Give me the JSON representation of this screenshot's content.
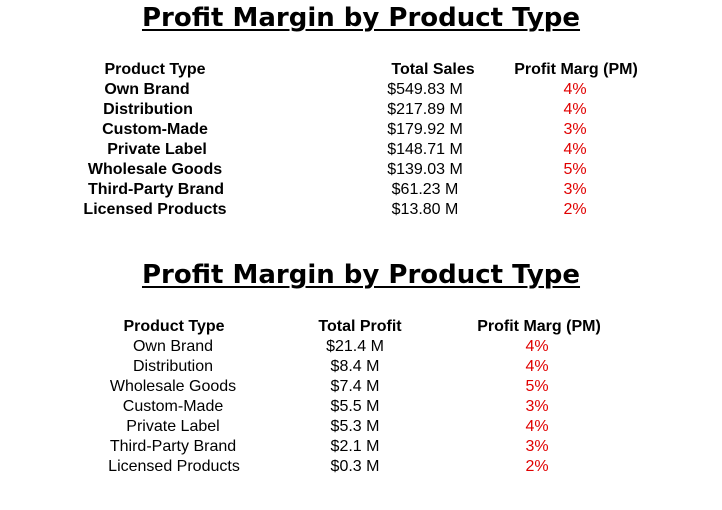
{
  "tables": [
    {
      "title": "Profit Margin by Product Type",
      "headers": [
        "Product Type",
        "Total Sales",
        "Profit Marg (PM)"
      ],
      "rows": [
        {
          "product": "Own Brand",
          "value": "$549.83 M",
          "pm": "4%"
        },
        {
          "product": "Distribution",
          "value": "$217.89 M",
          "pm": "4%"
        },
        {
          "product": "Custom-Made",
          "value": "$179.92 M",
          "pm": "3%"
        },
        {
          "product": "Private Label",
          "value": "$148.71 M",
          "pm": "4%"
        },
        {
          "product": "Wholesale Goods",
          "value": "$139.03 M",
          "pm": "5%"
        },
        {
          "product": "Third-Party Brand",
          "value": "$61.23 M",
          "pm": "3%"
        },
        {
          "product": "Licensed Products",
          "value": "$13.80 M",
          "pm": "2%"
        }
      ]
    },
    {
      "title": "Profit Margin by Product Type",
      "headers": [
        "Product Type",
        "Total Profit",
        "Profit Marg (PM)"
      ],
      "rows": [
        {
          "product": "Own Brand",
          "value": "$21.4 M",
          "pm": "4%"
        },
        {
          "product": "Distribution",
          "value": "$8.4 M",
          "pm": "4%"
        },
        {
          "product": "Wholesale Goods",
          "value": "$7.4 M",
          "pm": "5%"
        },
        {
          "product": "Custom-Made",
          "value": "$5.5 M",
          "pm": "3%"
        },
        {
          "product": "Private Label",
          "value": "$5.3 M",
          "pm": "4%"
        },
        {
          "product": "Third-Party Brand",
          "value": "$2.1 M",
          "pm": "3%"
        },
        {
          "product": "Licensed Products",
          "value": "$0.3 M",
          "pm": "2%"
        }
      ]
    }
  ],
  "colors": {
    "text": "#000000",
    "profit_margin": "#e00000"
  }
}
